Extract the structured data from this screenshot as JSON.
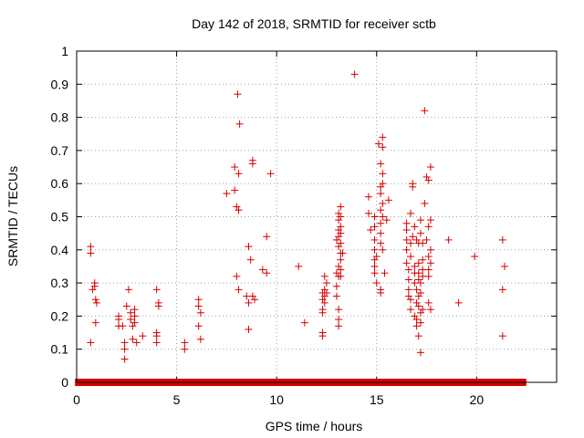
{
  "chart_data": {
    "type": "scatter",
    "title": "Day 142 of 2018, SRMTID for receiver sctb",
    "xlabel": "GPS time / hours",
    "ylabel": "SRMTID / TECUs",
    "xlim": [
      0,
      24
    ],
    "ylim": [
      0,
      1
    ],
    "x_ticks": [
      0,
      5,
      10,
      15,
      20
    ],
    "x_tick_labels": [
      "0",
      "5",
      "10",
      "15",
      "20"
    ],
    "y_ticks": [
      0,
      0.1,
      0.2,
      0.3,
      0.4,
      0.5,
      0.6,
      0.7,
      0.8,
      0.9,
      1
    ],
    "y_tick_labels": [
      "0",
      "0.1",
      "0.2",
      "0.3",
      "0.4",
      "0.5",
      "0.6",
      "0.7",
      "0.8",
      "0.9",
      "1"
    ],
    "grid": true,
    "marker": "+",
    "marker_color": "#d40000",
    "baseline_zero_ranges": [
      [
        0.1,
        22.3
      ]
    ],
    "series": [
      {
        "name": "sctb",
        "points": [
          [
            0.7,
            0.41
          ],
          [
            0.7,
            0.39
          ],
          [
            0.7,
            0.12
          ],
          [
            0.8,
            0.28
          ],
          [
            0.9,
            0.3
          ],
          [
            0.9,
            0.29
          ],
          [
            0.95,
            0.25
          ],
          [
            1.0,
            0.24
          ],
          [
            0.95,
            0.18
          ],
          [
            2.1,
            0.2
          ],
          [
            2.1,
            0.19
          ],
          [
            2.1,
            0.17
          ],
          [
            2.3,
            0.17
          ],
          [
            2.4,
            0.12
          ],
          [
            2.4,
            0.1
          ],
          [
            2.4,
            0.07
          ],
          [
            2.5,
            0.23
          ],
          [
            2.6,
            0.28
          ],
          [
            2.7,
            0.21
          ],
          [
            2.7,
            0.19
          ],
          [
            2.8,
            0.17
          ],
          [
            2.8,
            0.13
          ],
          [
            2.9,
            0.22
          ],
          [
            2.9,
            0.2
          ],
          [
            2.9,
            0.18
          ],
          [
            3.0,
            0.12
          ],
          [
            3.3,
            0.14
          ],
          [
            4.0,
            0.28
          ],
          [
            4.1,
            0.24
          ],
          [
            4.1,
            0.23
          ],
          [
            4.0,
            0.15
          ],
          [
            4.0,
            0.14
          ],
          [
            4.0,
            0.12
          ],
          [
            5.4,
            0.12
          ],
          [
            5.4,
            0.1
          ],
          [
            6.1,
            0.25
          ],
          [
            6.1,
            0.23
          ],
          [
            6.2,
            0.21
          ],
          [
            6.1,
            0.17
          ],
          [
            6.2,
            0.13
          ],
          [
            7.5,
            0.57
          ],
          [
            7.9,
            0.65
          ],
          [
            7.9,
            0.58
          ],
          [
            8.0,
            0.53
          ],
          [
            8.05,
            0.87
          ],
          [
            8.15,
            0.78
          ],
          [
            8.1,
            0.63
          ],
          [
            8.1,
            0.52
          ],
          [
            8.0,
            0.32
          ],
          [
            8.1,
            0.28
          ],
          [
            8.5,
            0.26
          ],
          [
            8.6,
            0.24
          ],
          [
            8.6,
            0.16
          ],
          [
            8.6,
            0.41
          ],
          [
            8.7,
            0.37
          ],
          [
            8.8,
            0.67
          ],
          [
            8.8,
            0.66
          ],
          [
            8.8,
            0.26
          ],
          [
            8.9,
            0.25
          ],
          [
            9.3,
            0.34
          ],
          [
            9.5,
            0.44
          ],
          [
            9.5,
            0.33
          ],
          [
            9.7,
            0.63
          ],
          [
            11.1,
            0.35
          ],
          [
            11.4,
            0.18
          ],
          [
            12.3,
            0.27
          ],
          [
            12.3,
            0.25
          ],
          [
            12.3,
            0.22
          ],
          [
            12.3,
            0.21
          ],
          [
            12.3,
            0.15
          ],
          [
            12.3,
            0.14
          ],
          [
            12.4,
            0.32
          ],
          [
            12.4,
            0.28
          ],
          [
            12.4,
            0.26
          ],
          [
            12.4,
            0.24
          ],
          [
            12.5,
            0.3
          ],
          [
            12.5,
            0.27
          ],
          [
            13.0,
            0.43
          ],
          [
            13.0,
            0.33
          ],
          [
            13.0,
            0.29
          ],
          [
            13.0,
            0.26
          ],
          [
            13.1,
            0.51
          ],
          [
            13.1,
            0.49
          ],
          [
            13.1,
            0.46
          ],
          [
            13.1,
            0.44
          ],
          [
            13.1,
            0.41
          ],
          [
            13.1,
            0.35
          ],
          [
            13.1,
            0.32
          ],
          [
            13.1,
            0.22
          ],
          [
            13.1,
            0.19
          ],
          [
            13.1,
            0.17
          ],
          [
            13.2,
            0.53
          ],
          [
            13.2,
            0.5
          ],
          [
            13.2,
            0.47
          ],
          [
            13.2,
            0.45
          ],
          [
            13.2,
            0.42
          ],
          [
            13.2,
            0.39
          ],
          [
            13.2,
            0.37
          ],
          [
            13.2,
            0.34
          ],
          [
            13.2,
            0.32
          ],
          [
            13.3,
            0.39
          ],
          [
            13.9,
            0.93
          ],
          [
            14.6,
            0.56
          ],
          [
            14.6,
            0.51
          ],
          [
            14.7,
            0.46
          ],
          [
            14.9,
            0.5
          ],
          [
            14.9,
            0.47
          ],
          [
            14.9,
            0.43
          ],
          [
            14.9,
            0.4
          ],
          [
            14.9,
            0.37
          ],
          [
            14.9,
            0.35
          ],
          [
            14.9,
            0.33
          ],
          [
            15.0,
            0.38
          ],
          [
            15.0,
            0.3
          ],
          [
            15.1,
            0.72
          ],
          [
            15.2,
            0.66
          ],
          [
            15.2,
            0.59
          ],
          [
            15.2,
            0.57
          ],
          [
            15.2,
            0.52
          ],
          [
            15.2,
            0.48
          ],
          [
            15.2,
            0.45
          ],
          [
            15.2,
            0.42
          ],
          [
            15.2,
            0.28
          ],
          [
            15.2,
            0.27
          ],
          [
            15.3,
            0.74
          ],
          [
            15.3,
            0.71
          ],
          [
            15.3,
            0.63
          ],
          [
            15.3,
            0.6
          ],
          [
            15.3,
            0.54
          ],
          [
            15.3,
            0.5
          ],
          [
            15.3,
            0.4
          ],
          [
            15.4,
            0.33
          ],
          [
            15.5,
            0.49
          ],
          [
            15.6,
            0.55
          ],
          [
            16.5,
            0.48
          ],
          [
            16.5,
            0.46
          ],
          [
            16.5,
            0.43
          ],
          [
            16.5,
            0.4
          ],
          [
            16.5,
            0.36
          ],
          [
            16.6,
            0.34
          ],
          [
            16.6,
            0.31
          ],
          [
            16.6,
            0.28
          ],
          [
            16.6,
            0.26
          ],
          [
            16.7,
            0.51
          ],
          [
            16.7,
            0.42
          ],
          [
            16.7,
            0.38
          ],
          [
            16.7,
            0.25
          ],
          [
            16.7,
            0.22
          ],
          [
            16.8,
            0.6
          ],
          [
            16.8,
            0.59
          ],
          [
            16.8,
            0.44
          ],
          [
            16.9,
            0.47
          ],
          [
            16.9,
            0.35
          ],
          [
            16.9,
            0.33
          ],
          [
            16.9,
            0.3
          ],
          [
            16.9,
            0.2
          ],
          [
            17.0,
            0.43
          ],
          [
            17.0,
            0.28
          ],
          [
            17.0,
            0.24
          ],
          [
            17.0,
            0.19
          ],
          [
            17.0,
            0.17
          ],
          [
            17.1,
            0.42
          ],
          [
            17.1,
            0.36
          ],
          [
            17.1,
            0.33
          ],
          [
            17.1,
            0.31
          ],
          [
            17.1,
            0.26
          ],
          [
            17.1,
            0.23
          ],
          [
            17.1,
            0.14
          ],
          [
            17.2,
            0.49
          ],
          [
            17.2,
            0.45
          ],
          [
            17.2,
            0.3
          ],
          [
            17.2,
            0.27
          ],
          [
            17.2,
            0.21
          ],
          [
            17.2,
            0.18
          ],
          [
            17.2,
            0.09
          ],
          [
            17.3,
            0.42
          ],
          [
            17.3,
            0.34
          ],
          [
            17.3,
            0.37
          ],
          [
            17.3,
            0.32
          ],
          [
            17.3,
            0.22
          ],
          [
            17.4,
            0.54
          ],
          [
            17.4,
            0.82
          ],
          [
            17.5,
            0.62
          ],
          [
            17.5,
            0.43
          ],
          [
            17.6,
            0.61
          ],
          [
            17.6,
            0.47
          ],
          [
            17.6,
            0.38
          ],
          [
            17.6,
            0.34
          ],
          [
            17.6,
            0.32
          ],
          [
            17.6,
            0.24
          ],
          [
            17.7,
            0.65
          ],
          [
            17.7,
            0.49
          ],
          [
            17.7,
            0.4
          ],
          [
            17.7,
            0.36
          ],
          [
            17.7,
            0.22
          ],
          [
            18.6,
            0.43
          ],
          [
            19.1,
            0.24
          ],
          [
            19.9,
            0.38
          ],
          [
            21.3,
            0.43
          ],
          [
            21.3,
            0.28
          ],
          [
            21.3,
            0.14
          ],
          [
            21.4,
            0.35
          ]
        ]
      }
    ]
  }
}
